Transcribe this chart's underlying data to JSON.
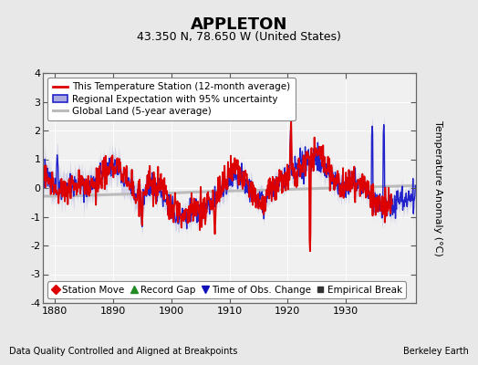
{
  "title": "APPLETON",
  "subtitle": "43.350 N, 78.650 W (United States)",
  "ylabel": "Temperature Anomaly (°C)",
  "footer_left": "Data Quality Controlled and Aligned at Breakpoints",
  "footer_right": "Berkeley Earth",
  "xlim": [
    1878,
    1942
  ],
  "ylim": [
    -4,
    4
  ],
  "yticks": [
    -4,
    -3,
    -2,
    -1,
    0,
    1,
    2,
    3,
    4
  ],
  "xticks": [
    1880,
    1890,
    1900,
    1910,
    1920,
    1930
  ],
  "bg_color": "#e8e8e8",
  "plot_bg_color": "#f0f0f0",
  "grid_color": "#ffffff",
  "station_color": "#dd0000",
  "regional_color": "#2222cc",
  "regional_fill": "#aaaadd",
  "global_color": "#bbbbbb",
  "title_fontsize": 13,
  "subtitle_fontsize": 9,
  "tick_fontsize": 8,
  "ylabel_fontsize": 8,
  "legend_fontsize": 7.5,
  "footer_fontsize": 7,
  "seed": 12345
}
